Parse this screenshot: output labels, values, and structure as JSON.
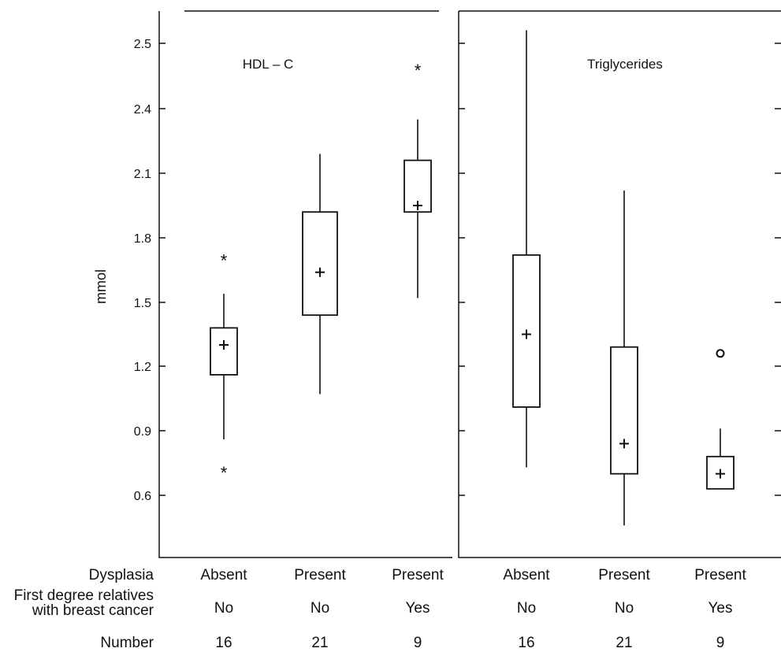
{
  "chart_data": {
    "type": "boxplot",
    "ylabel": "mmol",
    "ylim": [
      0.35,
      2.55
    ],
    "yticks": [
      0.6,
      0.9,
      1.2,
      1.5,
      1.8,
      2.1,
      2.4,
      2.5
    ],
    "ytick_labels": [
      "0.6",
      "0.9",
      "1.2",
      "1.5",
      "1.8",
      "2.1",
      "2.4",
      "2.5"
    ],
    "grid": false,
    "marker_legend": {
      "mean": "+",
      "outlier_star": "*",
      "outlier_circle": "o"
    },
    "row_labels": {
      "dysplasia": "Dysplasia",
      "relatives_line1": "First degree relatives",
      "relatives_line2": "with breast cancer",
      "number": "Number"
    },
    "groups": [
      {
        "dysplasia": "Absent",
        "relatives": "No",
        "number": "16"
      },
      {
        "dysplasia": "Present",
        "relatives": "No",
        "number": "21"
      },
      {
        "dysplasia": "Present",
        "relatives": "Yes",
        "number": "9"
      }
    ],
    "panels": [
      {
        "title": "HDL – C",
        "boxes": [
          {
            "whisker_low": 0.86,
            "q1": 1.16,
            "q3": 1.38,
            "whisker_high": 1.54,
            "mean": 1.3,
            "outliers": [
              {
                "value": 1.7,
                "marker": "*"
              },
              {
                "value": 0.71,
                "marker": "*"
              }
            ]
          },
          {
            "whisker_low": 1.07,
            "q1": 1.44,
            "q3": 1.92,
            "whisker_high": 2.19,
            "mean": 1.64,
            "outliers": []
          },
          {
            "whisker_low": 1.52,
            "q1": 1.92,
            "q3": 2.16,
            "whisker_high": 2.35,
            "mean": 1.95,
            "outliers": [
              {
                "value": 2.46,
                "marker": "*"
              }
            ]
          }
        ]
      },
      {
        "title": "Triglycerides",
        "boxes": [
          {
            "whisker_low": 0.73,
            "q1": 1.01,
            "q3": 1.72,
            "whisker_high": 2.52,
            "mean": 1.35,
            "outliers": []
          },
          {
            "whisker_low": 0.46,
            "q1": 0.7,
            "q3": 1.29,
            "whisker_high": 2.02,
            "mean": 0.84,
            "outliers": []
          },
          {
            "whisker_low": 0.63,
            "q1": 0.63,
            "q3": 0.78,
            "whisker_high": 0.91,
            "mean": 0.7,
            "outliers": [
              {
                "value": 1.26,
                "marker": "o"
              }
            ]
          }
        ]
      }
    ]
  }
}
